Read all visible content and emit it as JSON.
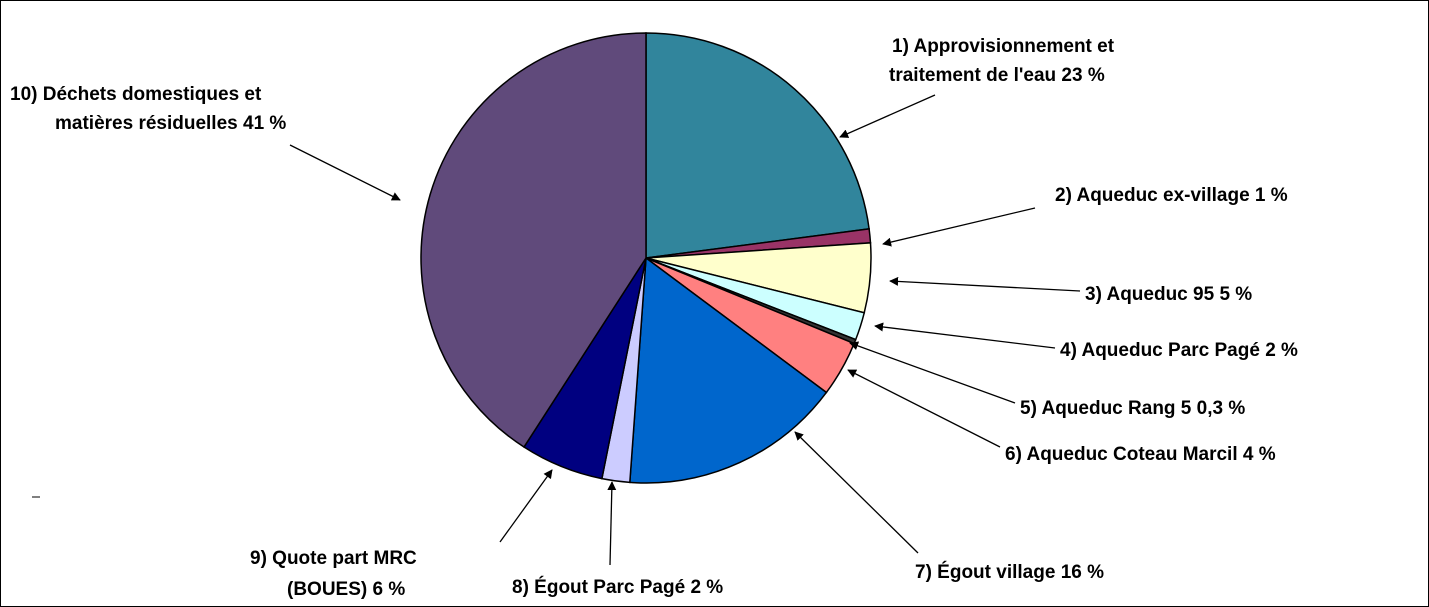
{
  "chart_data": {
    "type": "pie",
    "labels": [
      [
        "1) Approvisionnement et",
        "traitement de l'eau  23 %"
      ],
      [
        "2) Aqueduc ex-village 1 %"
      ],
      [
        "3) Aqueduc 95  5 %"
      ],
      [
        "4) Aqueduc Parc Pagé 2 %"
      ],
      [
        "5) Aqueduc Rang 5 0,3 %"
      ],
      [
        "6) Aqueduc Coteau Marcil 4 %"
      ],
      [
        "7) Égout village 16 %"
      ],
      [
        "8) Égout Parc Pagé 2 %"
      ],
      [
        "9) Quote part MRC",
        "(BOUES) 6 %"
      ],
      [
        "10) Déchets domestiques et",
        "matières résiduelles 41 %"
      ]
    ],
    "values": [
      23,
      1,
      5,
      2,
      0.3,
      4,
      16,
      2,
      6,
      41
    ],
    "colors": [
      "#31859c",
      "#993366",
      "#ffffcc",
      "#ccffff",
      "#333333",
      "#ff8080",
      "#0066cc",
      "#ccccff",
      "#000080",
      "#604a7b"
    ]
  }
}
